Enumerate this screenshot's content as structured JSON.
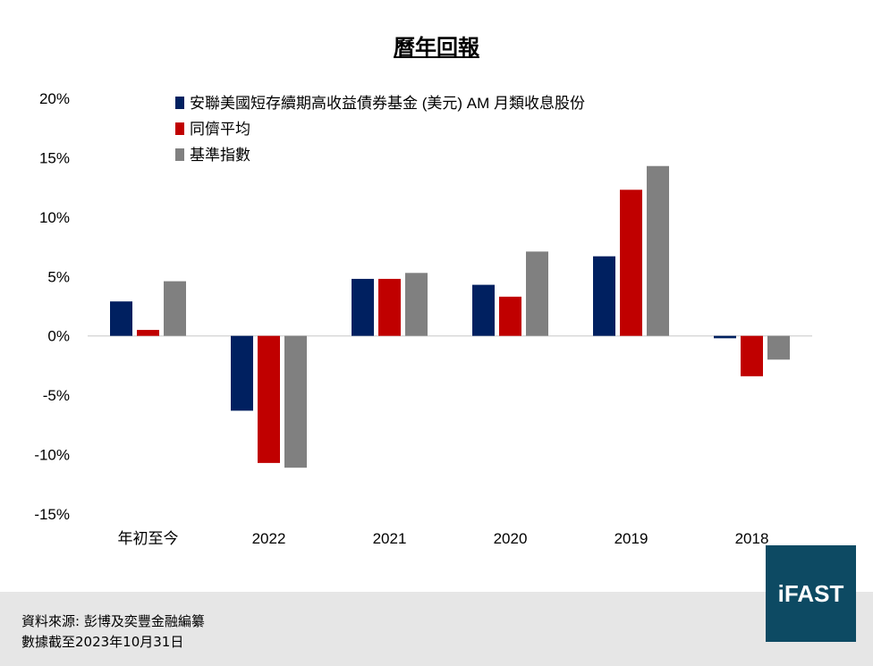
{
  "title": "曆年回報",
  "footer": {
    "source": "資料來源: 彭博及奕豐金融編纂",
    "date": "數據截至2023年10月31日"
  },
  "logo_text": "iFAST",
  "colors": {
    "series": [
      "#002060",
      "#c00000",
      "#808080"
    ],
    "gridline": "#d9d9d9"
  },
  "chart_data": {
    "type": "bar",
    "title": "曆年回報",
    "categories": [
      "年初至今",
      "2022",
      "2021",
      "2020",
      "2019",
      "2018"
    ],
    "series": [
      {
        "name": "安聯美國短存續期高收益債券基金 (美元) AM 月類收息股份",
        "values": [
          2.9,
          -6.3,
          4.8,
          4.3,
          6.7,
          -0.2
        ]
      },
      {
        "name": "同儕平均",
        "values": [
          0.5,
          -10.7,
          4.8,
          3.3,
          12.3,
          -3.4
        ]
      },
      {
        "name": "基準指數",
        "values": [
          4.6,
          -11.1,
          5.3,
          7.1,
          14.3,
          -2.0
        ]
      }
    ],
    "ylim": [
      -15,
      20
    ],
    "yticks": [
      20,
      15,
      10,
      5,
      0,
      -5,
      -10,
      -15
    ],
    "ytick_labels": [
      "20%",
      "15%",
      "10%",
      "5%",
      "0%",
      "-5%",
      "-10%",
      "-15%"
    ],
    "grid": false,
    "legend_position": "top"
  }
}
